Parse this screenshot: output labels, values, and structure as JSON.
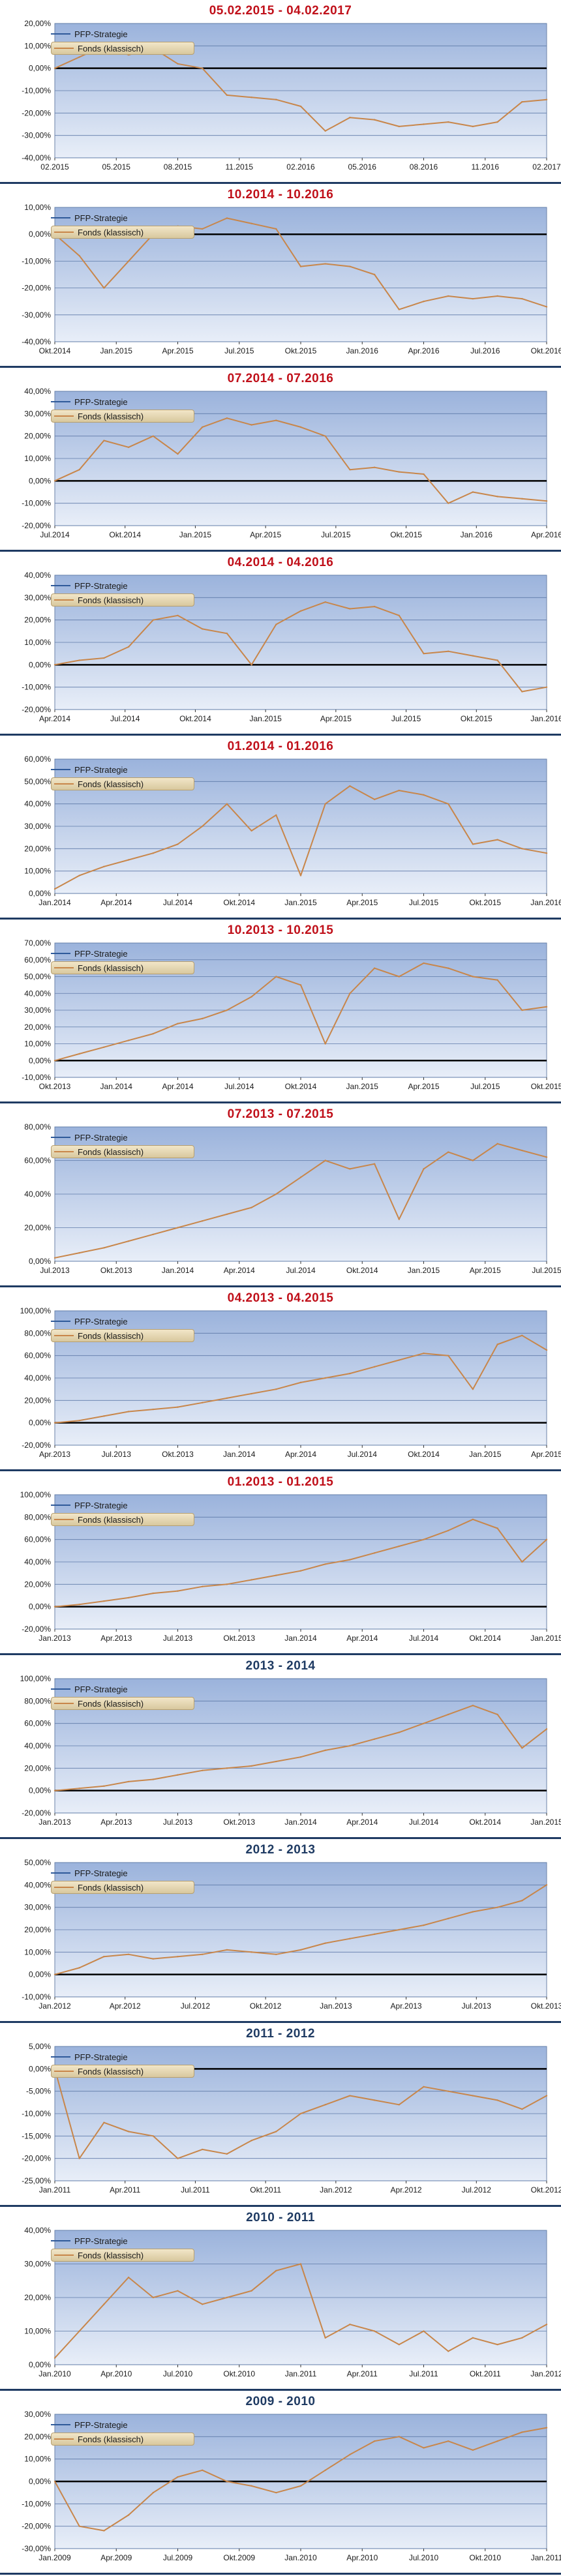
{
  "legend": {
    "series_1": "PFP-Strategie",
    "series_2": "Fonds (klassisch)"
  },
  "colors": {
    "title_red": "#c0101a",
    "title_blue": "#1f3b63",
    "plot_bg_top": "#9bb3dc",
    "plot_bg_bottom": "#e8eef8",
    "series_pfp": "#2f5a9a",
    "series_fonds": "#c8864a"
  },
  "chart_data": [
    {
      "type": "line",
      "title": "05.02.2015 - 04.02.2017",
      "title_color": "red",
      "y_ticks": [
        "20,00%",
        "10,00%",
        "0,00%",
        "-10,00%",
        "-20,00%",
        "-30,00%",
        "-40,00%"
      ],
      "ylim": [
        -40,
        20
      ],
      "x_ticks": [
        "02.2015",
        "05.2015",
        "08.2015",
        "11.2015",
        "02.2016",
        "05.2016",
        "08.2016",
        "11.2016",
        "02.2017"
      ],
      "series": [
        {
          "name": "Fonds (klassisch)",
          "x": [
            0,
            0.05,
            0.1,
            0.15,
            0.2,
            0.25,
            0.3,
            0.35,
            0.4,
            0.45,
            0.5,
            0.55,
            0.6,
            0.65,
            0.7,
            0.75,
            0.8,
            0.85,
            0.9,
            0.95,
            1.0
          ],
          "values": [
            0,
            5,
            10,
            6,
            9,
            2,
            0,
            -12,
            -13,
            -14,
            -17,
            -28,
            -22,
            -23,
            -26,
            -25,
            -24,
            -26,
            -24,
            -15,
            -14
          ]
        }
      ]
    },
    {
      "type": "line",
      "title": "10.2014 - 10.2016",
      "title_color": "red",
      "y_ticks": [
        "10,00%",
        "0,00%",
        "-10,00%",
        "-20,00%",
        "-30,00%",
        "-40,00%"
      ],
      "ylim": [
        -40,
        10
      ],
      "x_ticks": [
        "Okt.2014",
        "Jan.2015",
        "Apr.2015",
        "Jul.2015",
        "Okt.2015",
        "Jan.2016",
        "Apr.2016",
        "Jul.2016",
        "Okt.2016"
      ],
      "series": [
        {
          "name": "Fonds (klassisch)",
          "x": [
            0,
            0.05,
            0.1,
            0.15,
            0.2,
            0.25,
            0.3,
            0.35,
            0.4,
            0.45,
            0.5,
            0.55,
            0.6,
            0.65,
            0.7,
            0.75,
            0.8,
            0.85,
            0.9,
            0.95,
            1.0
          ],
          "values": [
            0,
            -8,
            -20,
            -10,
            0,
            3,
            2,
            6,
            4,
            2,
            -12,
            -11,
            -12,
            -15,
            -28,
            -25,
            -23,
            -24,
            -23,
            -24,
            -27
          ]
        }
      ]
    },
    {
      "type": "line",
      "title": "07.2014 - 07.2016",
      "title_color": "red",
      "y_ticks": [
        "40,00%",
        "30,00%",
        "20,00%",
        "10,00%",
        "0,00%",
        "-10,00%",
        "-20,00%"
      ],
      "ylim": [
        -20,
        40
      ],
      "x_ticks": [
        "Jul.2014",
        "Okt.2014",
        "Jan.2015",
        "Apr.2015",
        "Jul.2015",
        "Okt.2015",
        "Jan.2016",
        "Apr.2016"
      ],
      "series": [
        {
          "name": "Fonds (klassisch)",
          "x": [
            0,
            0.05,
            0.1,
            0.15,
            0.2,
            0.25,
            0.3,
            0.35,
            0.4,
            0.45,
            0.5,
            0.55,
            0.6,
            0.65,
            0.7,
            0.75,
            0.8,
            0.85,
            0.9,
            0.95,
            1.0
          ],
          "values": [
            0,
            5,
            18,
            15,
            20,
            12,
            24,
            28,
            25,
            27,
            24,
            20,
            5,
            6,
            4,
            3,
            -10,
            -5,
            -7,
            -8,
            -9
          ]
        }
      ]
    },
    {
      "type": "line",
      "title": "04.2014 - 04.2016",
      "title_color": "red",
      "y_ticks": [
        "40,00%",
        "30,00%",
        "20,00%",
        "10,00%",
        "0,00%",
        "-10,00%",
        "-20,00%"
      ],
      "ylim": [
        -20,
        40
      ],
      "x_ticks": [
        "Apr.2014",
        "Jul.2014",
        "Okt.2014",
        "Jan.2015",
        "Apr.2015",
        "Jul.2015",
        "Okt.2015",
        "Jan.2016"
      ],
      "series": [
        {
          "name": "Fonds (klassisch)",
          "x": [
            0,
            0.05,
            0.1,
            0.15,
            0.2,
            0.25,
            0.3,
            0.35,
            0.4,
            0.45,
            0.5,
            0.55,
            0.6,
            0.65,
            0.7,
            0.75,
            0.8,
            0.85,
            0.9,
            0.95,
            1.0
          ],
          "values": [
            0,
            2,
            3,
            8,
            20,
            22,
            16,
            14,
            0,
            18,
            24,
            28,
            25,
            26,
            22,
            5,
            6,
            4,
            2,
            -12,
            -10
          ]
        }
      ]
    },
    {
      "type": "line",
      "title": "01.2014 - 01.2016",
      "title_color": "red",
      "y_ticks": [
        "60,00%",
        "50,00%",
        "40,00%",
        "30,00%",
        "20,00%",
        "10,00%",
        "0,00%"
      ],
      "ylim": [
        0,
        60
      ],
      "x_ticks": [
        "Jan.2014",
        "Apr.2014",
        "Jul.2014",
        "Okt.2014",
        "Jan.2015",
        "Apr.2015",
        "Jul.2015",
        "Okt.2015",
        "Jan.2016"
      ],
      "series": [
        {
          "name": "Fonds (klassisch)",
          "x": [
            0,
            0.05,
            0.1,
            0.15,
            0.2,
            0.25,
            0.3,
            0.35,
            0.4,
            0.45,
            0.5,
            0.55,
            0.6,
            0.65,
            0.7,
            0.75,
            0.8,
            0.85,
            0.9,
            0.95,
            1.0
          ],
          "values": [
            2,
            8,
            12,
            15,
            18,
            22,
            30,
            40,
            28,
            35,
            8,
            40,
            48,
            42,
            46,
            44,
            40,
            22,
            24,
            20,
            18
          ]
        }
      ]
    },
    {
      "type": "line",
      "title": "10.2013 - 10.2015",
      "title_color": "red",
      "y_ticks": [
        "70,00%",
        "60,00%",
        "50,00%",
        "40,00%",
        "30,00%",
        "20,00%",
        "10,00%",
        "0,00%",
        "-10,00%"
      ],
      "ylim": [
        -10,
        70
      ],
      "x_ticks": [
        "Okt.2013",
        "Jan.2014",
        "Apr.2014",
        "Jul.2014",
        "Okt.2014",
        "Jan.2015",
        "Apr.2015",
        "Jul.2015",
        "Okt.2015"
      ],
      "series": [
        {
          "name": "Fonds (klassisch)",
          "x": [
            0,
            0.05,
            0.1,
            0.15,
            0.2,
            0.25,
            0.3,
            0.35,
            0.4,
            0.45,
            0.5,
            0.55,
            0.6,
            0.65,
            0.7,
            0.75,
            0.8,
            0.85,
            0.9,
            0.95,
            1.0
          ],
          "values": [
            0,
            4,
            8,
            12,
            16,
            22,
            25,
            30,
            38,
            50,
            45,
            10,
            40,
            55,
            50,
            58,
            55,
            50,
            48,
            30,
            32
          ]
        }
      ]
    },
    {
      "type": "line",
      "title": "07.2013 - 07.2015",
      "title_color": "red",
      "y_ticks": [
        "80,00%",
        "60,00%",
        "40,00%",
        "20,00%",
        "0,00%"
      ],
      "ylim": [
        0,
        80
      ],
      "x_ticks": [
        "Jul.2013",
        "Okt.2013",
        "Jan.2014",
        "Apr.2014",
        "Jul.2014",
        "Okt.2014",
        "Jan.2015",
        "Apr.2015",
        "Jul.2015"
      ],
      "series": [
        {
          "name": "Fonds (klassisch)",
          "x": [
            0,
            0.05,
            0.1,
            0.15,
            0.2,
            0.25,
            0.3,
            0.35,
            0.4,
            0.45,
            0.5,
            0.55,
            0.6,
            0.65,
            0.7,
            0.75,
            0.8,
            0.85,
            0.9,
            0.95,
            1.0
          ],
          "values": [
            2,
            5,
            8,
            12,
            16,
            20,
            24,
            28,
            32,
            40,
            50,
            60,
            55,
            58,
            25,
            55,
            65,
            60,
            70,
            66,
            62
          ]
        }
      ]
    },
    {
      "type": "line",
      "title": "04.2013 - 04.2015",
      "title_color": "red",
      "y_ticks": [
        "100,00%",
        "80,00%",
        "60,00%",
        "40,00%",
        "20,00%",
        "0,00%",
        "-20,00%"
      ],
      "ylim": [
        -20,
        100
      ],
      "x_ticks": [
        "Apr.2013",
        "Jul.2013",
        "Okt.2013",
        "Jan.2014",
        "Apr.2014",
        "Jul.2014",
        "Okt.2014",
        "Jan.2015",
        "Apr.2015"
      ],
      "series": [
        {
          "name": "Fonds (klassisch)",
          "x": [
            0,
            0.05,
            0.1,
            0.15,
            0.2,
            0.25,
            0.3,
            0.35,
            0.4,
            0.45,
            0.5,
            0.55,
            0.6,
            0.65,
            0.7,
            0.75,
            0.8,
            0.85,
            0.9,
            0.95,
            1.0
          ],
          "values": [
            0,
            2,
            6,
            10,
            12,
            14,
            18,
            22,
            26,
            30,
            36,
            40,
            44,
            50,
            56,
            62,
            60,
            30,
            70,
            78,
            65
          ]
        }
      ]
    },
    {
      "type": "line",
      "title": "01.2013 - 01.2015",
      "title_color": "red",
      "y_ticks": [
        "100,00%",
        "80,00%",
        "60,00%",
        "40,00%",
        "20,00%",
        "0,00%",
        "-20,00%"
      ],
      "ylim": [
        -20,
        100
      ],
      "x_ticks": [
        "Jan.2013",
        "Apr.2013",
        "Jul.2013",
        "Okt.2013",
        "Jan.2014",
        "Apr.2014",
        "Jul.2014",
        "Okt.2014",
        "Jan.2015"
      ],
      "series": [
        {
          "name": "Fonds (klassisch)",
          "x": [
            0,
            0.05,
            0.1,
            0.15,
            0.2,
            0.25,
            0.3,
            0.35,
            0.4,
            0.45,
            0.5,
            0.55,
            0.6,
            0.65,
            0.7,
            0.75,
            0.8,
            0.85,
            0.9,
            0.95,
            1.0
          ],
          "values": [
            0,
            2,
            5,
            8,
            12,
            14,
            18,
            20,
            24,
            28,
            32,
            38,
            42,
            48,
            54,
            60,
            68,
            78,
            70,
            40,
            60
          ]
        }
      ]
    },
    {
      "type": "line",
      "title": "2013 - 2014",
      "title_color": "blue",
      "y_ticks": [
        "100,00%",
        "80,00%",
        "60,00%",
        "40,00%",
        "20,00%",
        "0,00%",
        "-20,00%"
      ],
      "ylim": [
        -20,
        100
      ],
      "x_ticks": [
        "Jan.2013",
        "Apr.2013",
        "Jul.2013",
        "Okt.2013",
        "Jan.2014",
        "Apr.2014",
        "Jul.2014",
        "Okt.2014",
        "Jan.2015"
      ],
      "series": [
        {
          "name": "Fonds (klassisch)",
          "x": [
            0,
            0.05,
            0.1,
            0.15,
            0.2,
            0.25,
            0.3,
            0.35,
            0.4,
            0.45,
            0.5,
            0.55,
            0.6,
            0.65,
            0.7,
            0.75,
            0.8,
            0.85,
            0.9,
            0.95,
            1.0
          ],
          "values": [
            0,
            2,
            4,
            8,
            10,
            14,
            18,
            20,
            22,
            26,
            30,
            36,
            40,
            46,
            52,
            60,
            68,
            76,
            68,
            38,
            55
          ]
        }
      ]
    },
    {
      "type": "line",
      "title": "2012 - 2013",
      "title_color": "blue",
      "y_ticks": [
        "50,00%",
        "40,00%",
        "30,00%",
        "20,00%",
        "10,00%",
        "0,00%",
        "-10,00%"
      ],
      "ylim": [
        -10,
        50
      ],
      "x_ticks": [
        "Jan.2012",
        "Apr.2012",
        "Jul.2012",
        "Okt.2012",
        "Jan.2013",
        "Apr.2013",
        "Jul.2013",
        "Okt.2013"
      ],
      "series": [
        {
          "name": "Fonds (klassisch)",
          "x": [
            0,
            0.05,
            0.1,
            0.15,
            0.2,
            0.25,
            0.3,
            0.35,
            0.4,
            0.45,
            0.5,
            0.55,
            0.6,
            0.65,
            0.7,
            0.75,
            0.8,
            0.85,
            0.9,
            0.95,
            1.0
          ],
          "values": [
            0,
            3,
            8,
            9,
            7,
            8,
            9,
            11,
            10,
            9,
            11,
            14,
            16,
            18,
            20,
            22,
            25,
            28,
            30,
            33,
            40
          ]
        }
      ]
    },
    {
      "type": "line",
      "title": "2011 - 2012",
      "title_color": "blue",
      "y_ticks": [
        "5,00%",
        "0,00%",
        "-5,00%",
        "-10,00%",
        "-15,00%",
        "-20,00%",
        "-25,00%"
      ],
      "ylim": [
        -25,
        5
      ],
      "x_ticks": [
        "Jan.2011",
        "Apr.2011",
        "Jul.2011",
        "Okt.2011",
        "Jan.2012",
        "Apr.2012",
        "Jul.2012",
        "Okt.2012"
      ],
      "series": [
        {
          "name": "Fonds (klassisch)",
          "x": [
            0,
            0.05,
            0.1,
            0.15,
            0.2,
            0.25,
            0.3,
            0.35,
            0.4,
            0.45,
            0.5,
            0.55,
            0.6,
            0.65,
            0.7,
            0.75,
            0.8,
            0.85,
            0.9,
            0.95,
            1.0
          ],
          "values": [
            0,
            -20,
            -12,
            -14,
            -15,
            -20,
            -18,
            -19,
            -16,
            -14,
            -10,
            -8,
            -6,
            -7,
            -8,
            -4,
            -5,
            -6,
            -7,
            -9,
            -6
          ]
        }
      ]
    },
    {
      "type": "line",
      "title": "2010 - 2011",
      "title_color": "blue",
      "y_ticks": [
        "40,00%",
        "30,00%",
        "20,00%",
        "10,00%",
        "0,00%"
      ],
      "ylim": [
        0,
        40
      ],
      "x_ticks": [
        "Jan.2010",
        "Apr.2010",
        "Jul.2010",
        "Okt.2010",
        "Jan.2011",
        "Apr.2011",
        "Jul.2011",
        "Okt.2011",
        "Jan.2012"
      ],
      "series": [
        {
          "name": "Fonds (klassisch)",
          "x": [
            0,
            0.05,
            0.1,
            0.15,
            0.2,
            0.25,
            0.3,
            0.35,
            0.4,
            0.45,
            0.5,
            0.55,
            0.6,
            0.65,
            0.7,
            0.75,
            0.8,
            0.85,
            0.9,
            0.95,
            1.0
          ],
          "values": [
            2,
            10,
            18,
            26,
            20,
            22,
            18,
            20,
            22,
            28,
            30,
            8,
            12,
            10,
            6,
            10,
            4,
            8,
            6,
            8,
            12
          ]
        }
      ]
    },
    {
      "type": "line",
      "title": "2009 - 2010",
      "title_color": "blue",
      "y_ticks": [
        "30,00%",
        "20,00%",
        "10,00%",
        "0,00%",
        "-10,00%",
        "-20,00%",
        "-30,00%"
      ],
      "ylim": [
        -30,
        30
      ],
      "x_ticks": [
        "Jan.2009",
        "Apr.2009",
        "Jul.2009",
        "Okt.2009",
        "Jan.2010",
        "Apr.2010",
        "Jul.2010",
        "Okt.2010",
        "Jan.2011"
      ],
      "series": [
        {
          "name": "Fonds (klassisch)",
          "x": [
            0,
            0.05,
            0.1,
            0.15,
            0.2,
            0.25,
            0.3,
            0.35,
            0.4,
            0.45,
            0.5,
            0.55,
            0.6,
            0.65,
            0.7,
            0.75,
            0.8,
            0.85,
            0.9,
            0.95,
            1.0
          ],
          "values": [
            0,
            -20,
            -22,
            -15,
            -5,
            2,
            5,
            0,
            -2,
            -5,
            -2,
            5,
            12,
            18,
            20,
            15,
            18,
            14,
            18,
            22,
            24
          ]
        }
      ]
    }
  ]
}
